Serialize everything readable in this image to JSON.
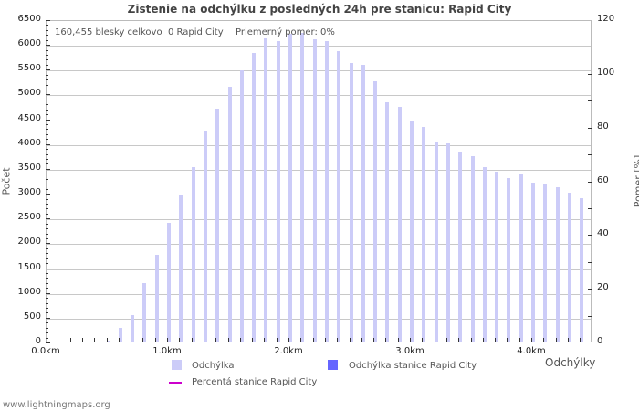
{
  "chart_data": {
    "type": "bar",
    "title": "Zistenie na odchýlku z posledných 24h pre stanicu: Rapid City",
    "xlabel": "Odchýlky",
    "ylabel": "Počet",
    "ylabel_right": "Pomer [%]",
    "ylim": [
      0,
      6500
    ],
    "ylim_right": [
      0,
      120
    ],
    "grid": true,
    "legend_position": "bottom",
    "x_ticks": [
      "0.0km",
      "1.0km",
      "2.0km",
      "3.0km",
      "4.0km"
    ],
    "y_ticks": [
      0,
      500,
      1000,
      1500,
      2000,
      2500,
      3000,
      3500,
      4000,
      4500,
      5000,
      5500,
      6000,
      6500
    ],
    "y_ticks_right": [
      0,
      20,
      40,
      60,
      80,
      100,
      120
    ],
    "categories": [
      "0.5km",
      "0.6km",
      "0.7km",
      "0.8km",
      "0.9km",
      "1.0km",
      "1.1km",
      "1.2km",
      "1.3km",
      "1.4km",
      "1.5km",
      "1.6km",
      "1.7km",
      "1.8km",
      "1.9km",
      "2.0km",
      "2.1km",
      "2.2km",
      "2.3km",
      "2.4km",
      "2.5km",
      "2.6km",
      "2.7km",
      "2.8km",
      "2.9km",
      "3.0km",
      "3.1km",
      "3.2km",
      "3.3km",
      "3.4km",
      "3.5km",
      "3.6km",
      "3.7km",
      "3.8km",
      "3.9km",
      "4.0km",
      "4.1km",
      "4.2km",
      "4.3km",
      "4.4km"
    ],
    "series": [
      {
        "name": "Odchýlka",
        "color": "#ccccf8",
        "values": [
          15,
          280,
          540,
          1180,
          1750,
          2400,
          2950,
          3520,
          4260,
          4700,
          5140,
          5470,
          5820,
          6120,
          6050,
          6210,
          6230,
          6100,
          6050,
          5860,
          5620,
          5580,
          5250,
          4830,
          4740,
          4440,
          4330,
          4030,
          4000,
          3830,
          3740,
          3520,
          3430,
          3300,
          3380,
          3210,
          3190,
          3110,
          3000,
          2890
        ]
      },
      {
        "name": "Odchýlka stanice Rapid City",
        "color": "#6666ff",
        "values": [
          0,
          0,
          0,
          0,
          0,
          0,
          0,
          0,
          0,
          0,
          0,
          0,
          0,
          0,
          0,
          0,
          0,
          0,
          0,
          0,
          0,
          0,
          0,
          0,
          0,
          0,
          0,
          0,
          0,
          0,
          0,
          0,
          0,
          0,
          0,
          0,
          0,
          0,
          0,
          0
        ]
      },
      {
        "name": "Percentá stanice Rapid City",
        "color": "#cc00cc",
        "type": "line",
        "values": []
      }
    ]
  },
  "info": {
    "total": "160,455 blesky celkovo",
    "station": "0 Rapid City",
    "ratio": "Priemerný pomer: 0%"
  },
  "legend": {
    "item1": "Odchýlka",
    "item2": "Odchýlka stanice Rapid City",
    "item3": "Percentá stanice Rapid City"
  },
  "footer": "www.lightningmaps.org"
}
